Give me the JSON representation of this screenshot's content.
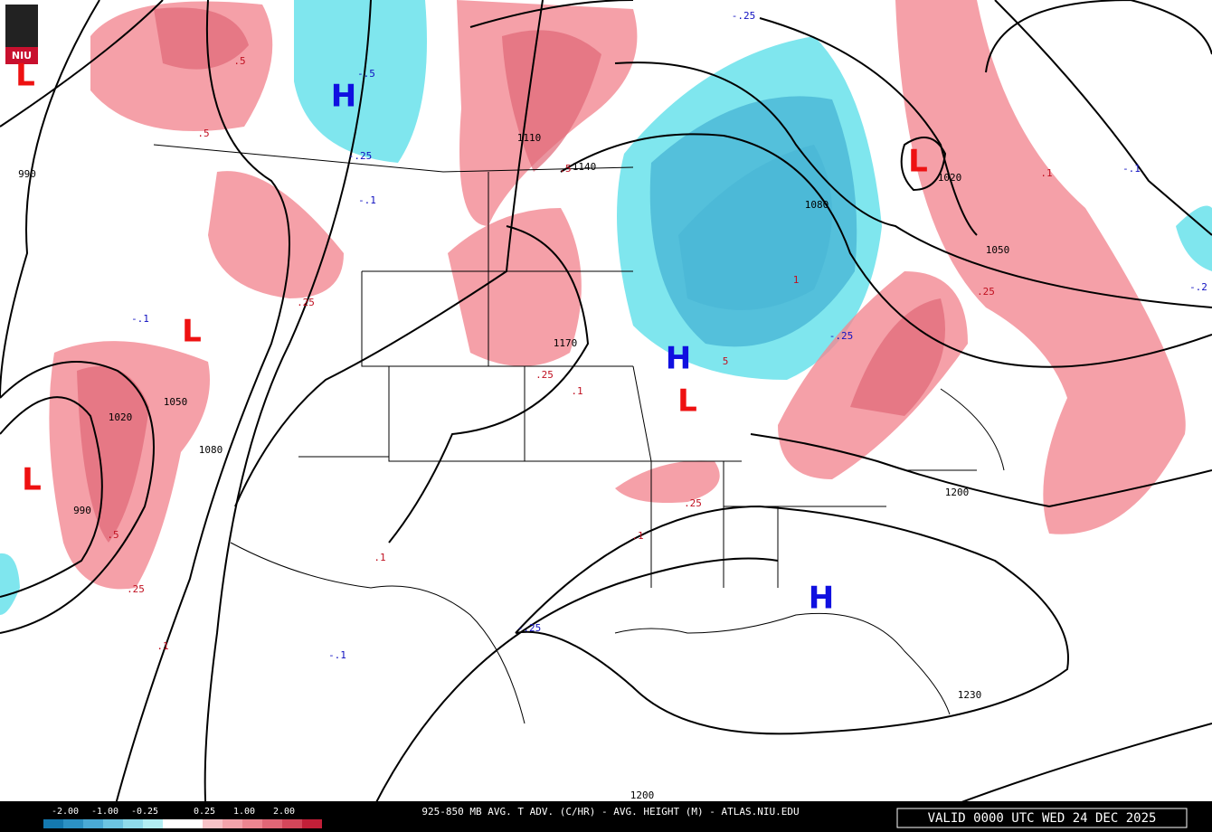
{
  "logo": "NIU",
  "pressure_centers": [
    "L",
    "H",
    "L",
    "L",
    "H",
    "L",
    "L",
    "H"
  ],
  "height_labels": [
    "990",
    "1110",
    "1140",
    "1080",
    "1020",
    "1050",
    "1170",
    "1050",
    "1020",
    "1080",
    "990",
    "1200",
    "1230",
    "1200"
  ],
  "advection_labels": [
    ".5",
    "-.5",
    ".5",
    "-.25",
    "-.1",
    ".5",
    ".25",
    ".1",
    "-.1",
    "-.25",
    ".25",
    "-.2",
    "-.1",
    "-.25",
    ".25",
    ".1",
    "5",
    ".25",
    "-.25",
    ".5",
    ".25",
    ".1",
    "-.1",
    ".1",
    ".1",
    "1"
  ],
  "colorbar": {
    "labels": [
      "-2.00",
      "-1.00",
      "-0.25",
      "0.25",
      "1.00",
      "2.00"
    ],
    "colors": [
      "#1479b0",
      "#2c91c4",
      "#4aaad6",
      "#6cc4e2",
      "#8fdbeb",
      "#b2eef3",
      "#ffffff",
      "#ffffff",
      "#f7c2c7",
      "#f3a3ab",
      "#ec8590",
      "#e06676",
      "#d4465a",
      "#c21f38"
    ]
  },
  "footer": {
    "title": "925-850 MB AVG. T ADV. (C/HR) - AVG. HEIGHT (M) - ATLAS.NIU.EDU",
    "valid": "VALID 0000 UTC WED 24 DEC 2025"
  }
}
